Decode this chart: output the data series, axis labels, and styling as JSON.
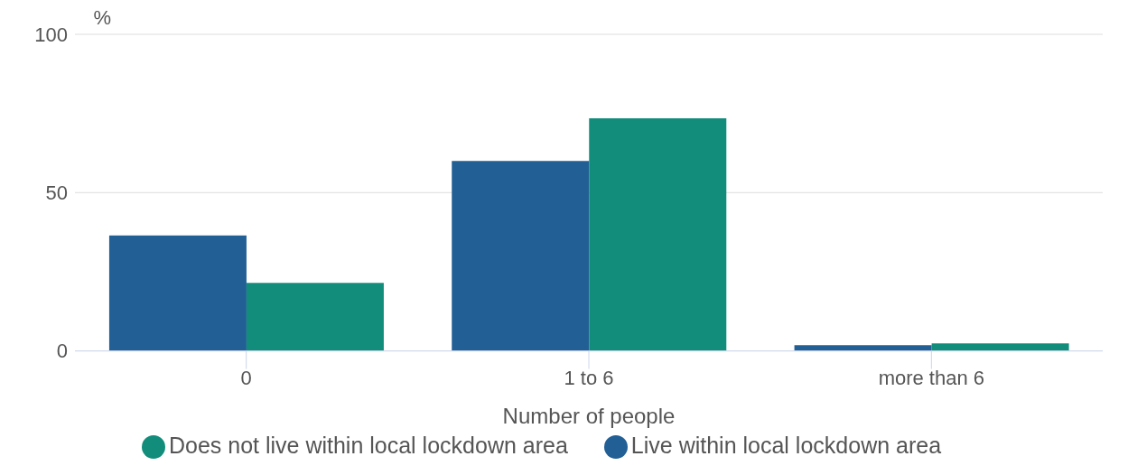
{
  "chart_data": {
    "type": "bar",
    "xlabel": "Number of people",
    "ylabel": "%",
    "categories": [
      "0",
      "1 to 6",
      "more than 6"
    ],
    "series": [
      {
        "name": "Live within local lockdown area",
        "color": "#215f95",
        "values": [
          36.5,
          60,
          1.8
        ]
      },
      {
        "name": "Does not live within local lockdown area",
        "color": "#128d7b",
        "values": [
          21.5,
          73.5,
          2.4
        ]
      }
    ],
    "ylim": [
      0,
      100
    ],
    "yticks": [
      0,
      50,
      100
    ],
    "grid": "y",
    "legend": "bottom"
  }
}
